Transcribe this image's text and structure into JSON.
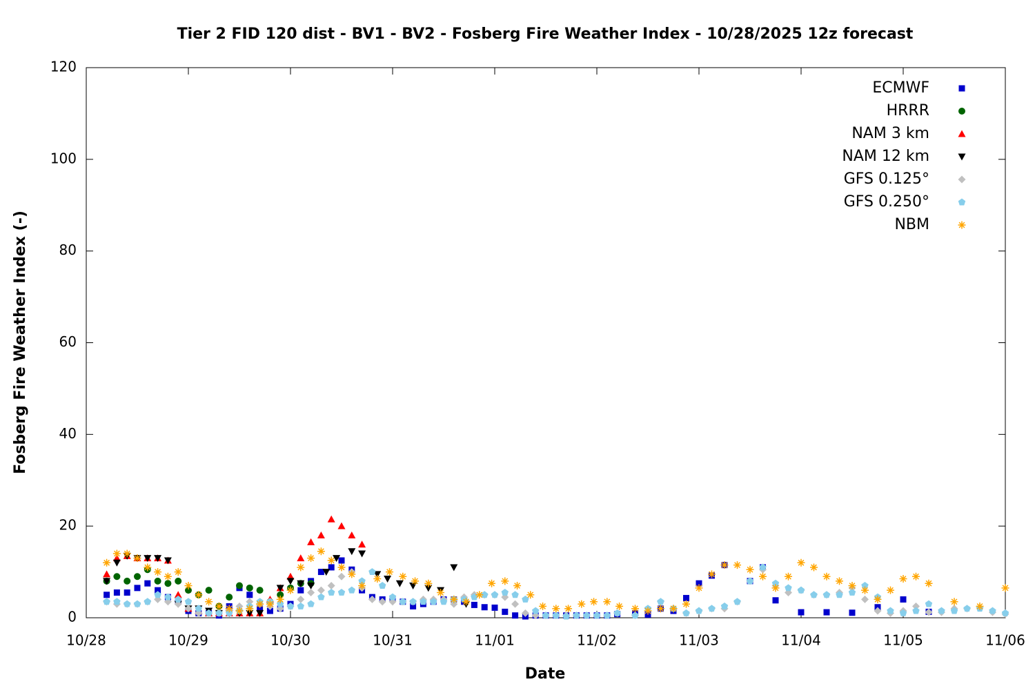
{
  "chart_data": {
    "type": "scatter",
    "title": "Tier 2 FID 120 dist - BV1 - BV2 - Fosberg Fire Weather Index - 10/28/2025 12z forecast",
    "x_label": "Date",
    "y_label": "Fosberg Fire Weather Index (-)",
    "xlim": [
      0,
      9
    ],
    "xticks": [
      {
        "value": 0,
        "label": "10/28"
      },
      {
        "value": 1,
        "label": "10/29"
      },
      {
        "value": 2,
        "label": "10/30"
      },
      {
        "value": 3,
        "label": "10/31"
      },
      {
        "value": 4,
        "label": "11/01"
      },
      {
        "value": 5,
        "label": "11/02"
      },
      {
        "value": 6,
        "label": "11/03"
      },
      {
        "value": 7,
        "label": "11/04"
      },
      {
        "value": 8,
        "label": "11/05"
      },
      {
        "value": 9,
        "label": "11/06"
      }
    ],
    "ylim": [
      0,
      120
    ],
    "yticks": [
      0,
      20,
      40,
      60,
      80,
      100,
      120
    ],
    "legend": "top-right",
    "series": [
      {
        "name": "ECMWF",
        "color": "#0000cc",
        "marker": "square",
        "x": [
          0.2,
          0.3,
          0.4,
          0.5,
          0.6,
          0.7,
          0.8,
          0.9,
          1.0,
          1.1,
          1.2,
          1.3,
          1.4,
          1.5,
          1.6,
          1.7,
          1.8,
          1.9,
          2.0,
          2.1,
          2.2,
          2.3,
          2.4,
          2.5,
          2.6,
          2.7,
          2.8,
          2.9,
          3.0,
          3.1,
          3.2,
          3.3,
          3.4,
          3.5,
          3.6,
          3.7,
          3.8,
          3.9,
          4.0,
          4.1,
          4.2,
          4.3,
          4.4,
          4.5,
          4.6,
          4.7,
          4.8,
          4.9,
          5.0,
          5.1,
          5.2,
          5.375,
          5.5,
          5.625,
          5.75,
          5.875,
          6.0,
          6.125,
          6.25,
          6.5,
          6.625,
          6.75,
          7.0,
          7.25,
          7.5,
          7.75,
          8.0,
          8.25
        ],
        "values": [
          5,
          5.5,
          5.5,
          6.5,
          7.5,
          6,
          4.5,
          3.5,
          1.5,
          1,
          1,
          0.5,
          2.5,
          6.5,
          5,
          2,
          1.5,
          2,
          3,
          6,
          8,
          10,
          11,
          12.5,
          10.5,
          6,
          4.5,
          4,
          4.2,
          3.5,
          2.5,
          3,
          3.5,
          4,
          4,
          3.5,
          2.8,
          2.3,
          2.2,
          1.3,
          0.5,
          0.3,
          0.5,
          0.5,
          0.5,
          0.5,
          0.5,
          0.5,
          0.5,
          0.5,
          0.8,
          1,
          0.7,
          2,
          1.5,
          4.3,
          7.5,
          9.2,
          11.5,
          8,
          11,
          3.8,
          1.2,
          1.2,
          1.1,
          2.3,
          4,
          1.3
        ]
      },
      {
        "name": "HRRR",
        "color": "#006400",
        "marker": "circle",
        "x": [
          0.2,
          0.3,
          0.4,
          0.5,
          0.6,
          0.7,
          0.8,
          0.9,
          1.0,
          1.1,
          1.2,
          1.3,
          1.4,
          1.5,
          1.6,
          1.7,
          1.8,
          1.9,
          2.0,
          2.1,
          2.2
        ],
        "values": [
          8,
          9,
          8,
          9,
          10.5,
          8,
          7.5,
          8,
          6,
          5,
          6,
          2.5,
          4.5,
          7,
          6.5,
          6,
          3.5,
          5,
          6.5,
          7.5,
          7.5
        ]
      },
      {
        "name": "NAM 3 km",
        "color": "#ff0000",
        "marker": "triangle-up",
        "x": [
          0.2,
          0.3,
          0.4,
          0.5,
          0.6,
          0.7,
          0.8,
          0.9,
          1.0,
          1.1,
          1.2,
          1.3,
          1.4,
          1.5,
          1.6,
          1.7,
          1.8,
          1.9,
          2.0,
          2.1,
          2.2,
          2.3,
          2.4,
          2.5,
          2.6,
          2.7
        ],
        "values": [
          9.5,
          13,
          13.5,
          13,
          13,
          13,
          12.5,
          5,
          2,
          1.5,
          1,
          1,
          1,
          1,
          1,
          1,
          4,
          6.5,
          9,
          13,
          16.5,
          18,
          21.5,
          20,
          18,
          16
        ]
      },
      {
        "name": "NAM 12 km",
        "color": "#000000",
        "marker": "triangle-down",
        "x": [
          0.2,
          0.3,
          0.4,
          0.5,
          0.6,
          0.7,
          0.8,
          0.9,
          1.0,
          1.1,
          1.2,
          1.3,
          1.4,
          1.5,
          1.6,
          1.7,
          1.9,
          2.0,
          2.1,
          2.2,
          2.35,
          2.45,
          2.6,
          2.7,
          2.85,
          2.95,
          3.07,
          3.2,
          3.35,
          3.47,
          3.6,
          3.72
        ],
        "values": [
          8,
          12,
          13.5,
          13,
          13,
          13,
          12.5,
          3,
          2,
          2,
          1.5,
          1,
          1,
          1,
          1,
          1,
          6.5,
          8,
          7.5,
          7,
          10,
          13,
          14.5,
          14,
          9.5,
          8.5,
          7.5,
          7,
          6.5,
          6,
          11,
          3
        ]
      },
      {
        "name": "GFS 0.125°",
        "color": "#c0c0c0",
        "marker": "diamond",
        "x": [
          0.2,
          0.3,
          0.4,
          0.5,
          0.6,
          0.7,
          0.8,
          0.9,
          1.0,
          1.1,
          1.2,
          1.3,
          1.4,
          1.5,
          1.6,
          1.7,
          1.8,
          1.9,
          2.0,
          2.1,
          2.2,
          2.3,
          2.4,
          2.5,
          2.6,
          2.7,
          2.8,
          2.9,
          3.0,
          3.1,
          3.2,
          3.3,
          3.4,
          3.5,
          3.6,
          3.7,
          3.8,
          3.9,
          4.0,
          4.1,
          4.2,
          4.3,
          4.4,
          4.5,
          4.6,
          4.7,
          4.8,
          4.9,
          5.0,
          5.1,
          5.2,
          5.375,
          5.5,
          5.625,
          5.75,
          5.875,
          6.0,
          6.125,
          6.25,
          6.375,
          6.5,
          6.625,
          6.75,
          6.875,
          7.0,
          7.125,
          7.25,
          7.375,
          7.5,
          7.625,
          7.75,
          7.875,
          8.0,
          8.125,
          8.25,
          8.375,
          8.5,
          8.625,
          8.75,
          8.875,
          9.0
        ],
        "values": [
          3.5,
          3,
          3,
          3,
          3.5,
          4,
          3.5,
          3,
          2,
          1,
          1,
          1,
          1.5,
          2.5,
          3.5,
          3,
          2.5,
          2,
          2.5,
          4,
          5.5,
          6,
          7,
          9,
          10,
          6.5,
          4,
          3.5,
          3.5,
          3.5,
          3.5,
          4,
          4,
          4,
          3,
          4.5,
          5,
          5,
          5,
          4.5,
          3,
          1,
          0.5,
          0.5,
          0.5,
          0.5,
          0.5,
          0.5,
          0.5,
          0.5,
          1,
          0.5,
          2,
          3.5,
          2,
          1,
          1.5,
          2,
          2,
          3.5,
          8,
          10.5,
          7,
          5.5,
          6,
          5,
          5,
          5.5,
          6.5,
          4,
          1.5,
          1,
          1.5,
          2.5,
          1.2,
          1.2,
          2,
          2,
          2.2,
          1.2,
          0.8
        ]
      },
      {
        "name": "GFS 0.250°",
        "color": "#87ceeb",
        "marker": "pentagon",
        "x": [
          0.2,
          0.3,
          0.4,
          0.5,
          0.6,
          0.7,
          0.8,
          0.9,
          1.0,
          1.1,
          1.2,
          1.3,
          1.4,
          1.5,
          1.6,
          1.7,
          1.8,
          1.9,
          2.0,
          2.1,
          2.2,
          2.3,
          2.4,
          2.5,
          2.6,
          2.7,
          2.8,
          2.9,
          3.0,
          3.1,
          3.2,
          3.3,
          3.4,
          3.5,
          3.6,
          3.7,
          3.8,
          3.9,
          4.0,
          4.1,
          4.2,
          4.3,
          4.4,
          4.5,
          4.6,
          4.7,
          4.8,
          4.9,
          5.0,
          5.1,
          5.2,
          5.375,
          5.5,
          5.625,
          5.75,
          5.875,
          6.0,
          6.125,
          6.25,
          6.375,
          6.5,
          6.625,
          6.75,
          6.875,
          7.0,
          7.125,
          7.25,
          7.375,
          7.5,
          7.625,
          7.75,
          7.875,
          8.0,
          8.125,
          8.25,
          8.375,
          8.5,
          8.625,
          8.75,
          8.875,
          9.0
        ],
        "values": [
          3.5,
          3.5,
          3,
          3,
          3.5,
          5,
          4.5,
          4,
          3.5,
          2,
          1,
          1,
          1,
          1.5,
          2.5,
          3.5,
          3.5,
          3,
          2.5,
          2.5,
          3,
          4.5,
          5.5,
          5.5,
          6,
          8,
          10,
          7,
          4.5,
          3.5,
          3.5,
          3.5,
          3.5,
          3.5,
          4,
          4,
          4.5,
          5,
          5,
          5.5,
          5,
          4,
          1.5,
          0.5,
          0.5,
          0.3,
          0.5,
          0.5,
          0.5,
          0.5,
          1,
          0.5,
          2,
          3.5,
          2,
          1,
          1.5,
          2,
          2.5,
          3.5,
          8,
          11,
          7.5,
          6.5,
          6,
          5,
          5,
          5,
          5.5,
          7,
          4.5,
          1.5,
          1,
          1.5,
          3,
          1.5,
          1.5,
          2,
          2,
          1.5,
          1
        ]
      },
      {
        "name": "NBM",
        "color": "#ffa500",
        "marker": "asterisk",
        "x": [
          0.2,
          0.3,
          0.4,
          0.5,
          0.6,
          0.7,
          0.8,
          0.9,
          1.0,
          1.1,
          1.2,
          1.3,
          1.4,
          1.5,
          1.6,
          1.7,
          1.8,
          1.9,
          2.0,
          2.1,
          2.2,
          2.3,
          2.4,
          2.5,
          2.6,
          2.7,
          2.85,
          2.97,
          3.1,
          3.22,
          3.35,
          3.47,
          3.6,
          3.72,
          3.85,
          3.97,
          4.1,
          4.22,
          4.35,
          4.47,
          4.6,
          4.72,
          4.85,
          4.97,
          5.1,
          5.22,
          5.375,
          5.5,
          5.625,
          5.75,
          5.875,
          6.0,
          6.125,
          6.25,
          6.375,
          6.5,
          6.625,
          6.75,
          6.875,
          7.0,
          7.125,
          7.25,
          7.375,
          7.5,
          7.625,
          7.75,
          7.875,
          8.0,
          8.125,
          8.25,
          8.5,
          8.75,
          9.0
        ],
        "values": [
          12,
          14,
          14,
          13,
          11,
          10,
          9,
          10,
          7,
          5,
          3.5,
          2.5,
          2,
          1.5,
          2,
          3,
          3,
          4,
          6,
          11,
          13,
          14.5,
          12.5,
          11,
          9.5,
          7,
          8.5,
          10,
          9,
          8,
          7.5,
          5.5,
          4,
          3.5,
          5,
          7.5,
          8,
          7,
          5,
          2.5,
          2,
          2,
          3,
          3.5,
          3.5,
          2.5,
          2,
          1.5,
          2,
          2,
          3,
          6.5,
          9.5,
          11.5,
          11.5,
          10.5,
          9,
          6.5,
          9,
          12,
          11,
          9,
          8,
          7,
          6,
          4,
          6,
          8.5,
          9,
          7.5,
          3.5,
          2.5,
          6.5
        ]
      }
    ]
  }
}
